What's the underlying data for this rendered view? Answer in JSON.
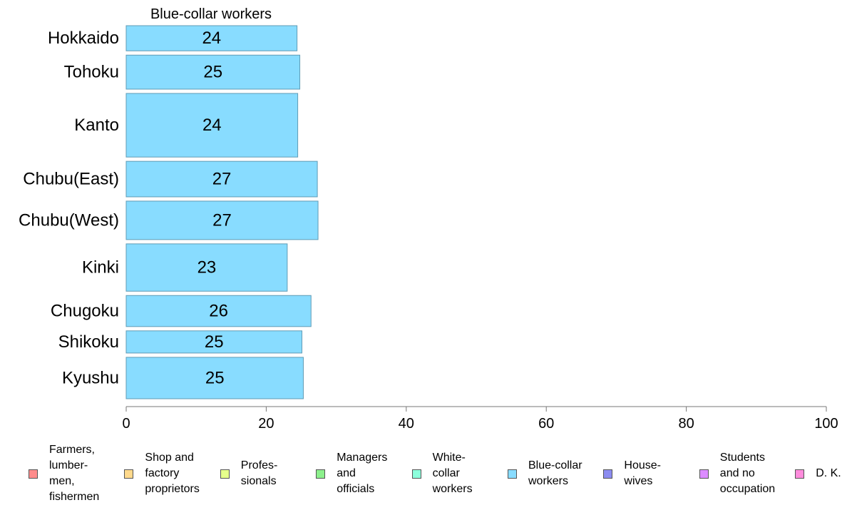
{
  "chart_data": {
    "type": "bar",
    "orientation": "horizontal",
    "title": "Blue-collar workers",
    "categories": [
      "Hokkaido",
      "Tohoku",
      "Kanto",
      "Chubu(East)",
      "Chubu(West)",
      "Kinki",
      "Chugoku",
      "Shikoku",
      "Kyushu"
    ],
    "values": [
      24.4,
      24.8,
      24.5,
      27.3,
      27.4,
      23.0,
      26.4,
      25.1,
      25.3
    ],
    "value_labels": [
      "24",
      "25",
      "24",
      "27",
      "27",
      "23",
      "26",
      "25",
      "25"
    ],
    "bar_thickness_weights": [
      34,
      46,
      86,
      48,
      52,
      64,
      42,
      30,
      56
    ],
    "xlim": [
      0,
      100
    ],
    "xticks": [
      "0",
      "20",
      "40",
      "60",
      "80",
      "100"
    ],
    "xtick_values": [
      0,
      20,
      40,
      60,
      80,
      100
    ],
    "grid": false,
    "bar_color": "#88dcff",
    "bar_edge_color": "#5f9bb5"
  },
  "legend": {
    "placement": "bottom",
    "items": [
      {
        "label": "Farmers,\nlumber-\nmen,\nfishermen",
        "color": "#ff8c8c"
      },
      {
        "label": "Shop and\nfactory\nproprietors",
        "color": "#ffd98c"
      },
      {
        "label": "Profes-\nsionals",
        "color": "#e6ff8c"
      },
      {
        "label": "Managers\nand\nofficials",
        "color": "#8cf08c"
      },
      {
        "label": "White-\ncollar\nworkers",
        "color": "#8cffdc"
      },
      {
        "label": "Blue-collar\nworkers",
        "color": "#88dcff"
      },
      {
        "label": "House-\nwives",
        "color": "#8c8cf0"
      },
      {
        "label": "Students\nand no\noccupation",
        "color": "#dc8cff"
      },
      {
        "label": "D. K.",
        "color": "#ff8cdc"
      }
    ]
  }
}
